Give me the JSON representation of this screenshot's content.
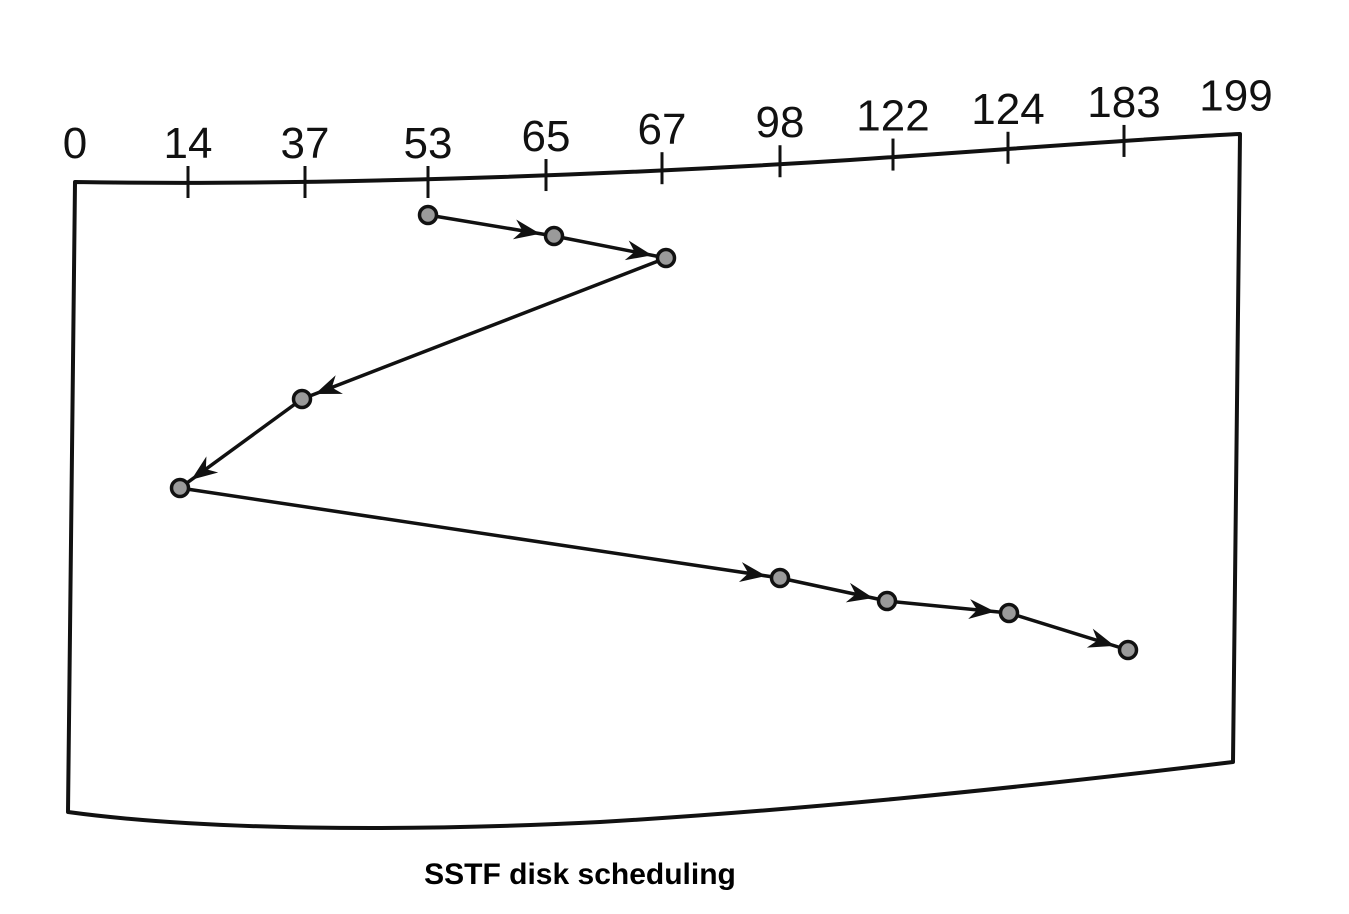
{
  "caption": "SSTF disk scheduling",
  "cylinder_labels": [
    "0",
    "14",
    "37",
    "53",
    "65",
    "67",
    "98",
    "122",
    "124",
    "183",
    "199"
  ],
  "service_order": [
    53,
    65,
    67,
    37,
    14,
    98,
    122,
    124,
    183
  ],
  "colors": {
    "line": "#111111",
    "node_fill": "#9a9a9a"
  }
}
